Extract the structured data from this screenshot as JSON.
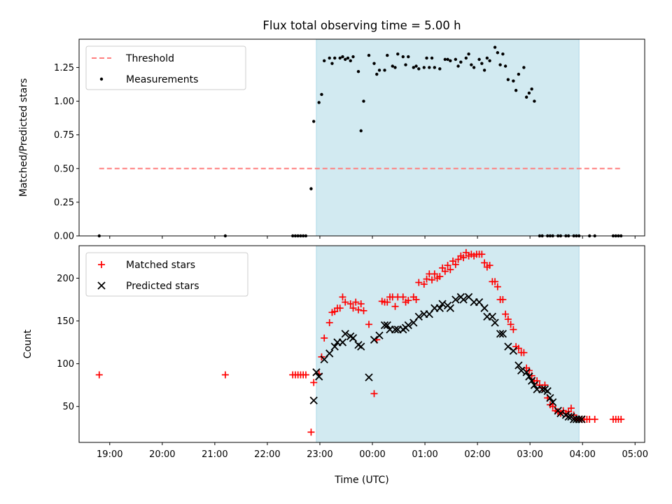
{
  "chart_data": {
    "type": "scatter",
    "title": "Flux total observing time = 5.00 h",
    "shaded_span": {
      "start": "22:56",
      "end": "03:56",
      "color": "#add8e6"
    },
    "x_axis": {
      "label": "Time (UTC)",
      "range": [
        "18:25",
        "05:11"
      ],
      "tick_labels": [
        "19:00",
        "20:00",
        "21:00",
        "22:00",
        "23:00",
        "00:00",
        "01:00",
        "02:00",
        "03:00",
        "04:00",
        "05:00"
      ]
    },
    "panels": [
      {
        "id": "ratio",
        "ylabel": "Matched/Predicted stars",
        "ylim": [
          0,
          1.46
        ],
        "yticks": [
          "0.00",
          "0.25",
          "0.50",
          "0.75",
          "1.00",
          "1.25"
        ],
        "legend": {
          "placement": "upper left"
        },
        "series": [
          {
            "name": "Threshold",
            "kind": "dashed-line",
            "color": "#ff7f7f",
            "x": [
              "18:48",
              "04:43"
            ],
            "y": [
              0.5,
              0.5
            ]
          },
          {
            "name": "Measurements",
            "kind": "dot",
            "color": "#000000",
            "x": [
              "18:48",
              "21:12",
              "22:29",
              "22:32",
              "22:35",
              "22:38",
              "22:41",
              "22:44",
              "22:50",
              "22:53",
              "22:59",
              "23:02",
              "23:05",
              "23:11",
              "23:14",
              "23:17",
              "23:23",
              "23:26",
              "23:29",
              "23:32",
              "23:35",
              "23:38",
              "23:44",
              "23:47",
              "23:50",
              "23:56",
              "00:02",
              "00:05",
              "00:08",
              "00:14",
              "00:17",
              "00:23",
              "00:26",
              "00:29",
              "00:35",
              "00:38",
              "00:41",
              "00:47",
              "00:50",
              "00:53",
              "00:59",
              "01:02",
              "01:05",
              "01:08",
              "01:11",
              "01:17",
              "01:23",
              "01:26",
              "01:29",
              "01:35",
              "01:38",
              "01:41",
              "01:47",
              "01:50",
              "01:53",
              "01:56",
              "02:02",
              "02:05",
              "02:08",
              "02:11",
              "02:14",
              "02:20",
              "02:23",
              "02:26",
              "02:29",
              "02:32",
              "02:35",
              "02:41",
              "02:44",
              "02:47",
              "02:53",
              "02:56",
              "02:59",
              "03:02",
              "03:05",
              "03:11",
              "03:14",
              "03:20",
              "03:23",
              "03:26",
              "03:32",
              "03:35",
              "03:41",
              "03:44",
              "03:50",
              "03:53",
              "03:56",
              "04:08",
              "04:14",
              "04:35",
              "04:38",
              "04:41",
              "04:44"
            ],
            "y": [
              0.0,
              0.0,
              0.0,
              0.0,
              0.0,
              0.0,
              0.0,
              0.0,
              0.35,
              0.85,
              0.99,
              1.05,
              1.3,
              1.32,
              1.28,
              1.32,
              1.32,
              1.33,
              1.31,
              1.32,
              1.3,
              1.33,
              1.22,
              0.78,
              1.0,
              1.34,
              1.28,
              1.2,
              1.23,
              1.23,
              1.34,
              1.26,
              1.25,
              1.35,
              1.33,
              1.27,
              1.33,
              1.25,
              1.26,
              1.24,
              1.25,
              1.32,
              1.25,
              1.32,
              1.25,
              1.24,
              1.31,
              1.31,
              1.3,
              1.31,
              1.26,
              1.29,
              1.32,
              1.35,
              1.27,
              1.25,
              1.31,
              1.28,
              1.23,
              1.32,
              1.3,
              1.4,
              1.36,
              1.27,
              1.35,
              1.26,
              1.16,
              1.15,
              1.08,
              1.2,
              1.25,
              1.03,
              1.06,
              1.09,
              1.0,
              0.0,
              0.0,
              0.0,
              0.0,
              0.0,
              0.0,
              0.0,
              0.0,
              0.0,
              0.0,
              0.0,
              0.0,
              0.0,
              0.0,
              0.0,
              0.0,
              0.0,
              0.0
            ]
          }
        ]
      },
      {
        "id": "count",
        "ylabel": "Count",
        "ylim": [
          8,
          238
        ],
        "yticks": [
          "50",
          "100",
          "150",
          "200"
        ],
        "legend": {
          "placement": "upper left"
        },
        "series": [
          {
            "name": "Matched stars",
            "kind": "plus",
            "color": "#ff0000",
            "x": [
              "18:48",
              "21:12",
              "22:29",
              "22:32",
              "22:35",
              "22:38",
              "22:41",
              "22:44",
              "22:50",
              "22:53",
              "22:59",
              "23:02",
              "23:05",
              "23:11",
              "23:14",
              "23:17",
              "23:20",
              "23:23",
              "23:26",
              "23:29",
              "23:35",
              "23:38",
              "23:41",
              "23:44",
              "23:47",
              "23:50",
              "23:56",
              "00:02",
              "00:05",
              "00:11",
              "00:14",
              "00:17",
              "00:20",
              "00:23",
              "00:26",
              "00:29",
              "00:35",
              "00:38",
              "00:41",
              "00:47",
              "00:50",
              "00:53",
              "00:59",
              "01:02",
              "01:05",
              "01:08",
              "01:11",
              "01:14",
              "01:17",
              "01:20",
              "01:23",
              "01:26",
              "01:29",
              "01:32",
              "01:35",
              "01:38",
              "01:41",
              "01:44",
              "01:47",
              "01:50",
              "01:53",
              "01:56",
              "01:59",
              "02:02",
              "02:05",
              "02:08",
              "02:11",
              "02:14",
              "02:17",
              "02:20",
              "02:23",
              "02:26",
              "02:29",
              "02:32",
              "02:35",
              "02:38",
              "02:41",
              "02:44",
              "02:47",
              "02:50",
              "02:53",
              "02:56",
              "02:59",
              "03:02",
              "03:05",
              "03:08",
              "03:11",
              "03:14",
              "03:17",
              "03:20",
              "03:23",
              "03:26",
              "03:29",
              "03:32",
              "03:35",
              "03:38",
              "03:41",
              "03:44",
              "03:47",
              "03:50",
              "03:53",
              "03:56",
              "03:59",
              "04:02",
              "04:05",
              "04:08",
              "04:14",
              "04:35",
              "04:38",
              "04:41",
              "04:44"
            ],
            "y": [
              87,
              87,
              87,
              87,
              87,
              87,
              87,
              87,
              20,
              78,
              88,
              108,
              130,
              148,
              160,
              161,
              165,
              165,
              178,
              172,
              170,
              165,
              172,
              163,
              170,
              162,
              146,
              65,
              128,
              173,
              172,
              172,
              178,
              178,
              167,
              178,
              178,
              172,
              174,
              178,
              175,
              195,
              193,
              199,
              205,
              198,
              205,
              200,
              202,
              212,
              208,
              215,
              210,
              220,
              216,
              222,
              226,
              224,
              230,
              226,
              228,
              226,
              228,
              228,
              228,
              218,
              213,
              215,
              196,
              196,
              190,
              175,
              175,
              158,
              152,
              146,
              140,
              120,
              118,
              113,
              113,
              95,
              92,
              86,
              80,
              80,
              75,
              72,
              75,
              60,
              52,
              50,
              45,
              44,
              42,
              45,
              42,
              44,
              48,
              40,
              35,
              35,
              35,
              35,
              35,
              35,
              35,
              35,
              35,
              35,
              35
            ],
            "_x_trim_note": "",
            "_placeholder": ""
          },
          {
            "name": "Predicted stars",
            "kind": "x",
            "color": "#000000",
            "x": [
              "22:53",
              "22:56",
              "22:59",
              "23:05",
              "23:11",
              "23:17",
              "23:20",
              "23:26",
              "23:29",
              "23:35",
              "23:38",
              "23:44",
              "23:47",
              "23:56",
              "00:02",
              "00:08",
              "00:14",
              "00:17",
              "00:20",
              "00:26",
              "00:29",
              "00:35",
              "00:38",
              "00:41",
              "00:47",
              "00:53",
              "00:59",
              "01:05",
              "01:11",
              "01:17",
              "01:20",
              "01:26",
              "01:29",
              "01:35",
              "01:41",
              "01:44",
              "01:50",
              "01:56",
              "02:02",
              "02:08",
              "02:11",
              "02:17",
              "02:20",
              "02:26",
              "02:29",
              "02:35",
              "02:41",
              "02:47",
              "02:50",
              "02:56",
              "02:59",
              "03:02",
              "03:05",
              "03:08",
              "03:14",
              "03:17",
              "03:20",
              "03:23",
              "03:26",
              "03:32",
              "03:35",
              "03:41",
              "03:44",
              "03:47",
              "03:50",
              "03:53",
              "03:56",
              "03:59"
            ],
            "y": [
              57,
              90,
              85,
              105,
              112,
              120,
              125,
              125,
              135,
              132,
              130,
              122,
              120,
              84,
              128,
              133,
              145,
              145,
              140,
              140,
              140,
              140,
              142,
              145,
              148,
              155,
              158,
              158,
              165,
              165,
              170,
              168,
              165,
              175,
              178,
              175,
              178,
              172,
              172,
              165,
              155,
              155,
              148,
              135,
              135,
              120,
              115,
              98,
              92,
              90,
              85,
              80,
              75,
              70,
              70,
              70,
              68,
              60,
              55,
              45,
              42,
              40,
              38,
              38,
              35,
              35,
              35,
              35
            ]
          }
        ]
      }
    ]
  }
}
